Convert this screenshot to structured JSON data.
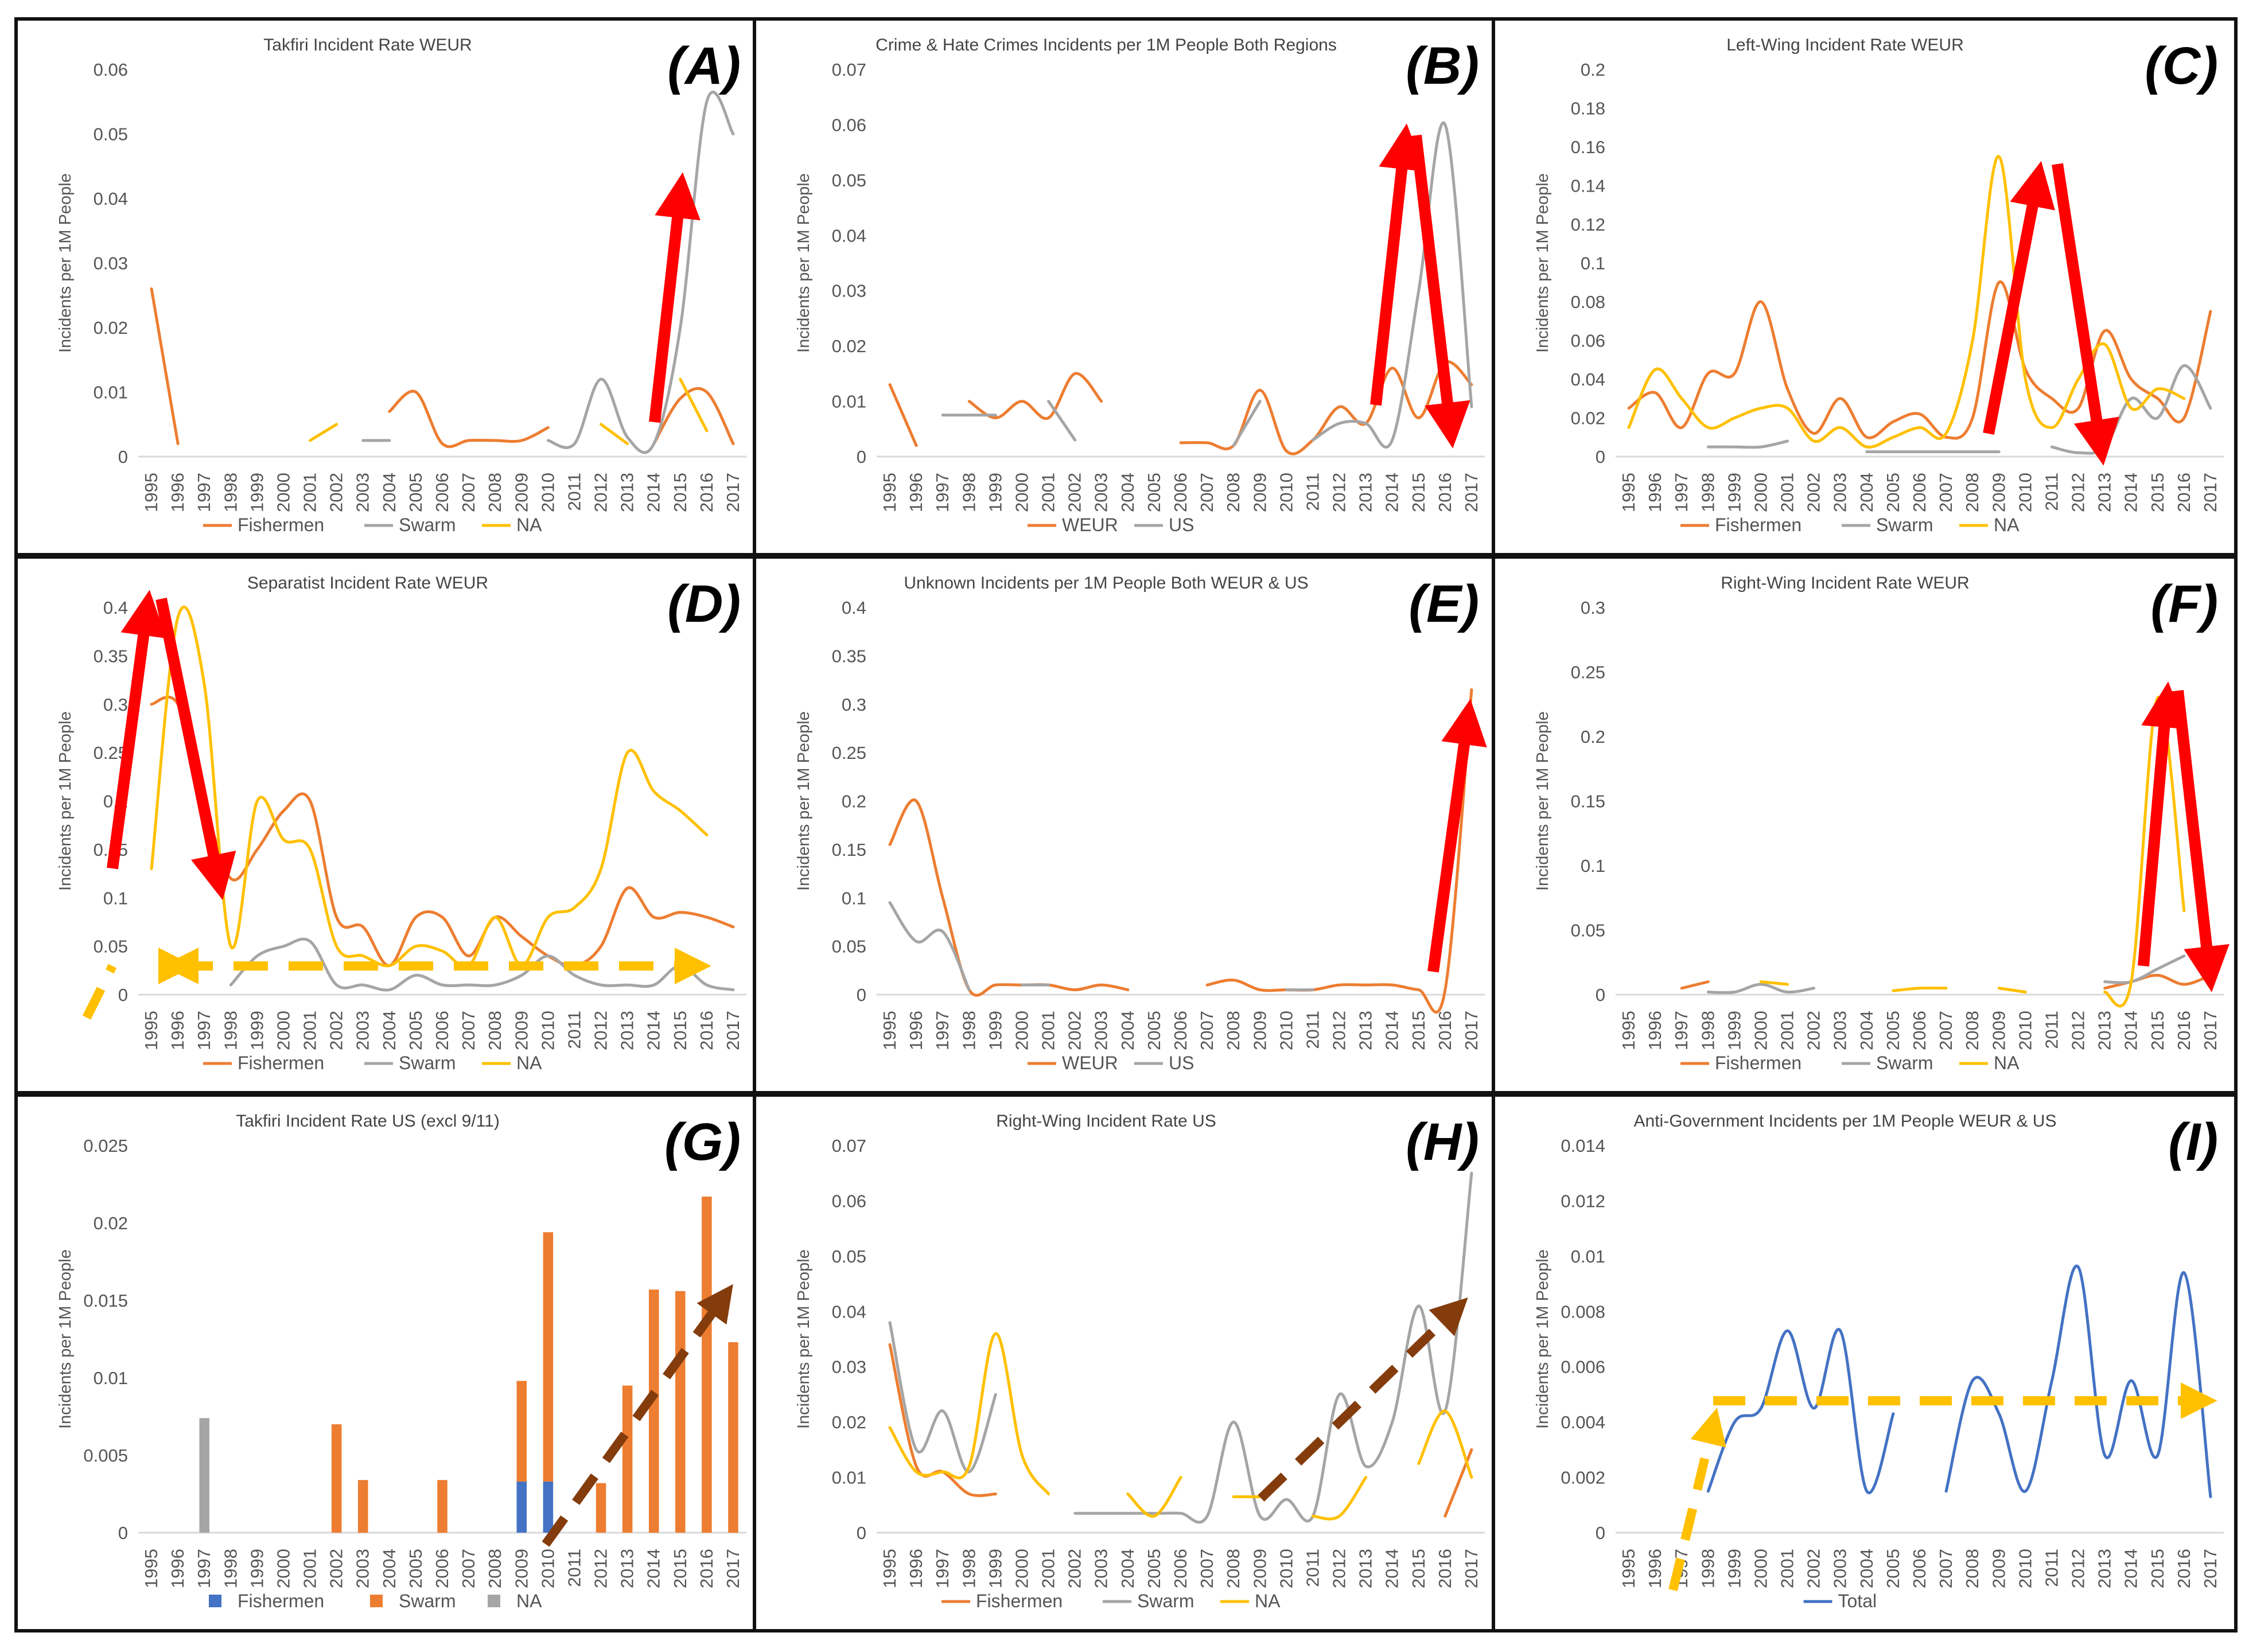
{
  "colors": {
    "fishermen": "#ED7D31",
    "swarm": "#A5A5A5",
    "na": "#FFC000",
    "weur": "#ED7D31",
    "us": "#A5A5A5",
    "blue": "#4472C4",
    "red_arrow": "#FF0000",
    "dashed_yellow": "#FFC000",
    "dashed_brown": "#843C0C"
  },
  "chart_data": [
    {
      "id": "A",
      "type": "line",
      "title": "Takfiri Incident Rate WEUR",
      "panel_label": "(A)",
      "ylabel": "Incidents per 1M People",
      "ylim": [
        0,
        0.06
      ],
      "yticks": [
        "0",
        "0.01",
        "0.02",
        "0.03",
        "0.04",
        "0.05",
        "0.06"
      ],
      "x": [
        "1995",
        "1996",
        "1997",
        "1998",
        "1999",
        "2000",
        "2001",
        "2002",
        "2003",
        "2004",
        "2005",
        "2006",
        "2007",
        "2008",
        "2009",
        "2010",
        "2011",
        "2012",
        "2013",
        "2014",
        "2015",
        "2016",
        "2017"
      ],
      "series": [
        {
          "name": "Fishermen",
          "color_key": "fishermen",
          "values": [
            0.026,
            0.002,
            null,
            null,
            null,
            null,
            null,
            null,
            null,
            0.007,
            0.01,
            0.002,
            0.0025,
            0.0025,
            0.0025,
            0.0045,
            null,
            null,
            null,
            0.002,
            0.009,
            0.01,
            0.002
          ]
        },
        {
          "name": "Swarm",
          "color_key": "swarm",
          "values": [
            null,
            null,
            null,
            null,
            null,
            null,
            null,
            null,
            0.0025,
            0.0025,
            null,
            null,
            null,
            null,
            null,
            0.0025,
            0.002,
            0.012,
            0.003,
            0.002,
            0.02,
            0.055,
            0.05
          ]
        },
        {
          "name": "NA",
          "color_key": "na",
          "values": [
            null,
            null,
            null,
            null,
            null,
            null,
            0.0025,
            0.005,
            null,
            null,
            null,
            null,
            null,
            null,
            null,
            null,
            null,
            0.005,
            0.002,
            null,
            0.012,
            0.004,
            null
          ]
        }
      ]
    },
    {
      "id": "B",
      "type": "line",
      "title": "Crime & Hate Crimes Incidents per 1M People Both Regions",
      "panel_label": "(B)",
      "ylabel": "Incidents per 1M People",
      "ylim": [
        0,
        0.07
      ],
      "yticks": [
        "0",
        "0.01",
        "0.02",
        "0.03",
        "0.04",
        "0.05",
        "0.06",
        "0.07"
      ],
      "x": [
        "1995",
        "1996",
        "1997",
        "1998",
        "1999",
        "2000",
        "2001",
        "2002",
        "2003",
        "2004",
        "2005",
        "2006",
        "2007",
        "2008",
        "2009",
        "2010",
        "2011",
        "2012",
        "2013",
        "2014",
        "2015",
        "2016",
        "2017"
      ],
      "series": [
        {
          "name": "WEUR",
          "color_key": "weur",
          "values": [
            0.013,
            0.002,
            null,
            0.01,
            0.007,
            0.01,
            0.007,
            0.015,
            0.01,
            null,
            null,
            0.0025,
            0.0025,
            0.002,
            0.012,
            0.001,
            0.003,
            0.009,
            0.006,
            0.016,
            0.007,
            0.017,
            0.013
          ]
        },
        {
          "name": "US",
          "color_key": "us",
          "values": [
            null,
            null,
            0.0075,
            0.0075,
            0.0075,
            null,
            0.01,
            0.003,
            null,
            null,
            null,
            null,
            null,
            0.002,
            0.01,
            null,
            0.003,
            0.006,
            0.006,
            0.003,
            0.03,
            0.06,
            0.009
          ]
        }
      ]
    },
    {
      "id": "C",
      "type": "line",
      "title": "Left-Wing Incident Rate WEUR",
      "panel_label": "(C)",
      "ylabel": "Incidents per 1M People",
      "ylim": [
        0,
        0.2
      ],
      "yticks": [
        "0",
        "0.02",
        "0.04",
        "0.06",
        "0.08",
        "0.1",
        "0.12",
        "0.14",
        "0.16",
        "0.18",
        "0.2"
      ],
      "x": [
        "1995",
        "1996",
        "1997",
        "1998",
        "1999",
        "2000",
        "2001",
        "2002",
        "2003",
        "2004",
        "2005",
        "2006",
        "2007",
        "2008",
        "2009",
        "2010",
        "2011",
        "2012",
        "2013",
        "2014",
        "2015",
        "2016",
        "2017"
      ],
      "series": [
        {
          "name": "Fishermen",
          "color_key": "fishermen",
          "values": [
            0.025,
            0.033,
            0.015,
            0.043,
            0.043,
            0.08,
            0.035,
            0.012,
            0.03,
            0.01,
            0.018,
            0.022,
            0.01,
            0.02,
            0.09,
            0.045,
            0.03,
            0.025,
            0.065,
            0.04,
            0.03,
            0.02,
            0.075
          ]
        },
        {
          "name": "Swarm",
          "color_key": "swarm",
          "values": [
            null,
            null,
            null,
            0.005,
            0.005,
            0.005,
            0.008,
            null,
            null,
            0.0025,
            0.0025,
            0.0025,
            0.0025,
            0.0025,
            0.0025,
            null,
            0.005,
            0.002,
            0.005,
            0.03,
            0.02,
            0.047,
            0.025
          ]
        },
        {
          "name": "NA",
          "color_key": "na",
          "values": [
            0.015,
            0.045,
            0.03,
            0.015,
            0.02,
            0.025,
            0.025,
            0.008,
            0.015,
            0.005,
            0.01,
            0.015,
            0.012,
            0.06,
            0.155,
            0.04,
            0.015,
            0.04,
            0.058,
            0.025,
            0.035,
            0.03,
            null
          ]
        }
      ]
    },
    {
      "id": "D",
      "type": "line",
      "title": "Separatist Incident Rate WEUR",
      "panel_label": "(D)",
      "ylabel": "Incidents per 1M People",
      "ylim": [
        0,
        0.4
      ],
      "yticks": [
        "0",
        "0.05",
        "0.1",
        "0.15",
        "0.2",
        "0.25",
        "0.3",
        "0.35",
        "0.4"
      ],
      "x": [
        "1995",
        "1996",
        "1997",
        "1998",
        "1999",
        "2000",
        "2001",
        "2002",
        "2003",
        "2004",
        "2005",
        "2006",
        "2007",
        "2008",
        "2009",
        "2010",
        "2011",
        "2012",
        "2013",
        "2014",
        "2015",
        "2016",
        "2017"
      ],
      "series": [
        {
          "name": "Fishermen",
          "color_key": "fishermen",
          "values": [
            0.3,
            0.3,
            0.2,
            0.12,
            0.15,
            0.19,
            0.2,
            0.08,
            0.07,
            0.03,
            0.08,
            0.08,
            0.04,
            0.08,
            0.06,
            0.04,
            0.03,
            0.05,
            0.11,
            0.08,
            0.085,
            0.08,
            0.07
          ]
        },
        {
          "name": "Swarm",
          "color_key": "swarm",
          "values": [
            null,
            null,
            null,
            0.01,
            0.04,
            0.05,
            0.055,
            0.01,
            0.01,
            0.005,
            0.02,
            0.01,
            0.01,
            0.01,
            0.02,
            0.04,
            0.02,
            0.01,
            0.01,
            0.01,
            0.03,
            0.01,
            0.005
          ]
        },
        {
          "name": "NA",
          "color_key": "na",
          "values": [
            0.13,
            0.39,
            0.32,
            0.05,
            0.2,
            0.16,
            0.15,
            0.05,
            0.04,
            0.03,
            0.05,
            0.045,
            0.03,
            0.08,
            0.03,
            0.08,
            0.09,
            0.13,
            0.25,
            0.21,
            0.19,
            0.165,
            null
          ]
        }
      ]
    },
    {
      "id": "E",
      "type": "line",
      "title": "Unknown Incidents per 1M People Both WEUR & US",
      "panel_label": "(E)",
      "ylabel": "Incidents per 1M People",
      "ylim": [
        0,
        0.4
      ],
      "yticks": [
        "0",
        "0.05",
        "0.1",
        "0.15",
        "0.2",
        "0.25",
        "0.3",
        "0.35",
        "0.4"
      ],
      "x": [
        "1995",
        "1996",
        "1997",
        "1998",
        "1999",
        "2000",
        "2001",
        "2002",
        "2003",
        "2004",
        "2005",
        "2006",
        "2007",
        "2008",
        "2009",
        "2010",
        "2011",
        "2012",
        "2013",
        "2014",
        "2015",
        "2016",
        "2017"
      ],
      "series": [
        {
          "name": "WEUR",
          "color_key": "weur",
          "values": [
            0.155,
            0.2,
            0.1,
            0.005,
            0.01,
            0.01,
            0.01,
            0.005,
            0.01,
            0.005,
            null,
            null,
            0.01,
            0.015,
            0.005,
            0.005,
            0.005,
            0.01,
            0.01,
            0.01,
            0.005,
            0.005,
            0.315
          ]
        },
        {
          "name": "US",
          "color_key": "us",
          "values": [
            0.095,
            0.055,
            0.065,
            0.005,
            null,
            0.01,
            0.01,
            null,
            null,
            null,
            null,
            null,
            null,
            null,
            null,
            0.005,
            0.005,
            null,
            null,
            null,
            null,
            null,
            null
          ]
        }
      ]
    },
    {
      "id": "F",
      "type": "line",
      "title": "Right-Wing Incident Rate WEUR",
      "panel_label": "(F)",
      "ylabel": "Incidents per 1M People",
      "ylim": [
        0,
        0.3
      ],
      "yticks": [
        "0",
        "0.05",
        "0.1",
        "0.15",
        "0.2",
        "0.25",
        "0.3"
      ],
      "x": [
        "1995",
        "1996",
        "1997",
        "1998",
        "1999",
        "2000",
        "2001",
        "2002",
        "2003",
        "2004",
        "2005",
        "2006",
        "2007",
        "2008",
        "2009",
        "2010",
        "2011",
        "2012",
        "2013",
        "2014",
        "2015",
        "2016",
        "2017"
      ],
      "series": [
        {
          "name": "Fishermen",
          "color_key": "fishermen",
          "values": [
            null,
            null,
            0.005,
            0.01,
            null,
            null,
            null,
            null,
            null,
            null,
            null,
            null,
            null,
            null,
            null,
            null,
            null,
            null,
            0.005,
            0.01,
            0.015,
            0.008,
            0.015
          ]
        },
        {
          "name": "Swarm",
          "color_key": "swarm",
          "values": [
            null,
            null,
            null,
            0.002,
            0.002,
            0.008,
            0.002,
            0.005,
            null,
            null,
            null,
            null,
            null,
            null,
            null,
            null,
            null,
            null,
            0.01,
            0.01,
            0.02,
            0.03,
            null
          ]
        },
        {
          "name": "NA",
          "color_key": "na",
          "values": [
            null,
            null,
            0.01,
            null,
            null,
            0.01,
            0.008,
            null,
            null,
            null,
            0.003,
            0.005,
            0.005,
            null,
            0.005,
            0.002,
            null,
            null,
            0.002,
            0.01,
            0.23,
            0.065,
            null
          ]
        }
      ]
    },
    {
      "id": "G",
      "type": "bar",
      "stacked": true,
      "title": "Takfiri Incident Rate US (excl 9/11)",
      "panel_label": "(G)",
      "ylabel": "Incidents per 1M People",
      "ylim": [
        0,
        0.025
      ],
      "yticks": [
        "0",
        "0.005",
        "0.01",
        "0.015",
        "0.02",
        "0.025"
      ],
      "x": [
        "1995",
        "1996",
        "1997",
        "1998",
        "1999",
        "2000",
        "2001",
        "2002",
        "2003",
        "2004",
        "2005",
        "2006",
        "2007",
        "2008",
        "2009",
        "2010",
        "2011",
        "2012",
        "2013",
        "2014",
        "2015",
        "2016",
        "2017"
      ],
      "series": [
        {
          "name": "Fishermen",
          "color_key": "blue",
          "values": [
            0,
            0,
            0,
            0,
            0,
            0,
            0,
            0,
            0,
            0,
            0,
            0,
            0,
            0,
            0.0033,
            0.0033,
            0,
            0,
            0,
            0,
            0,
            0,
            0
          ]
        },
        {
          "name": "Swarm",
          "color_key": "fishermen",
          "values": [
            0,
            0,
            0,
            0,
            0,
            0,
            0,
            0.007,
            0.0034,
            0,
            0,
            0.0034,
            0,
            0,
            0.0065,
            0.0161,
            0,
            0.0032,
            0.0095,
            0.0157,
            0.0156,
            0.0217,
            0.0123
          ]
        },
        {
          "name": "NA",
          "color_key": "swarm",
          "values": [
            0,
            0,
            0.0074,
            0,
            0,
            0,
            0,
            0,
            0,
            0,
            0,
            0,
            0,
            0,
            0,
            0,
            0,
            0,
            0,
            0,
            0,
            0,
            0
          ]
        }
      ]
    },
    {
      "id": "H",
      "type": "line",
      "title": "Right-Wing Incident Rate US",
      "panel_label": "(H)",
      "ylabel": "Incidents per 1M People",
      "ylim": [
        0,
        0.07
      ],
      "yticks": [
        "0",
        "0.01",
        "0.02",
        "0.03",
        "0.04",
        "0.05",
        "0.06",
        "0.07"
      ],
      "x": [
        "1995",
        "1996",
        "1997",
        "1998",
        "1999",
        "2000",
        "2001",
        "2002",
        "2003",
        "2004",
        "2005",
        "2006",
        "2007",
        "2008",
        "2009",
        "2010",
        "2011",
        "2012",
        "2013",
        "2014",
        "2015",
        "2016",
        "2017"
      ],
      "series": [
        {
          "name": "Fishermen",
          "color_key": "fishermen",
          "values": [
            0.034,
            0.012,
            0.011,
            0.007,
            0.007,
            null,
            null,
            null,
            null,
            null,
            null,
            null,
            null,
            null,
            null,
            null,
            null,
            null,
            null,
            null,
            null,
            0.003,
            0.015
          ]
        },
        {
          "name": "Swarm",
          "color_key": "swarm",
          "values": [
            0.038,
            0.015,
            0.022,
            0.011,
            0.025,
            null,
            null,
            0.0035,
            0.0035,
            0.0035,
            0.0035,
            0.0035,
            0.003,
            0.02,
            0.003,
            0.006,
            0.003,
            0.025,
            0.012,
            0.02,
            0.041,
            0.022,
            0.065
          ]
        },
        {
          "name": "NA",
          "color_key": "na",
          "values": [
            0.019,
            0.011,
            0.011,
            0.012,
            0.036,
            0.014,
            0.007,
            null,
            null,
            0.007,
            0.003,
            0.01,
            null,
            0.0065,
            0.0065,
            null,
            0.003,
            0.003,
            0.01,
            null,
            0.0125,
            0.022,
            0.01
          ]
        }
      ]
    },
    {
      "id": "I",
      "type": "line",
      "title": "Anti-Government Incidents per 1M People WEUR & US",
      "panel_label": "(I)",
      "ylabel": "Incidents per 1M People",
      "ylim": [
        0,
        0.014
      ],
      "yticks": [
        "0",
        "0.002",
        "0.004",
        "0.006",
        "0.008",
        "0.01",
        "0.012",
        "0.014"
      ],
      "x": [
        "1995",
        "1996",
        "1997",
        "1998",
        "1999",
        "2000",
        "2001",
        "2002",
        "2003",
        "2004",
        "2005",
        "2006",
        "2007",
        "2008",
        "2009",
        "2010",
        "2011",
        "2012",
        "2013",
        "2014",
        "2015",
        "2016",
        "2017"
      ],
      "series": [
        {
          "name": "Total",
          "color_key": "blue",
          "values": [
            null,
            null,
            null,
            0.0015,
            0.004,
            0.0045,
            0.0073,
            0.0045,
            0.0073,
            0.0015,
            0.0043,
            null,
            0.0015,
            0.0055,
            0.0043,
            0.0015,
            0.0055,
            0.0096,
            0.0028,
            0.0055,
            0.0028,
            0.0094,
            0.0013
          ]
        }
      ]
    }
  ]
}
